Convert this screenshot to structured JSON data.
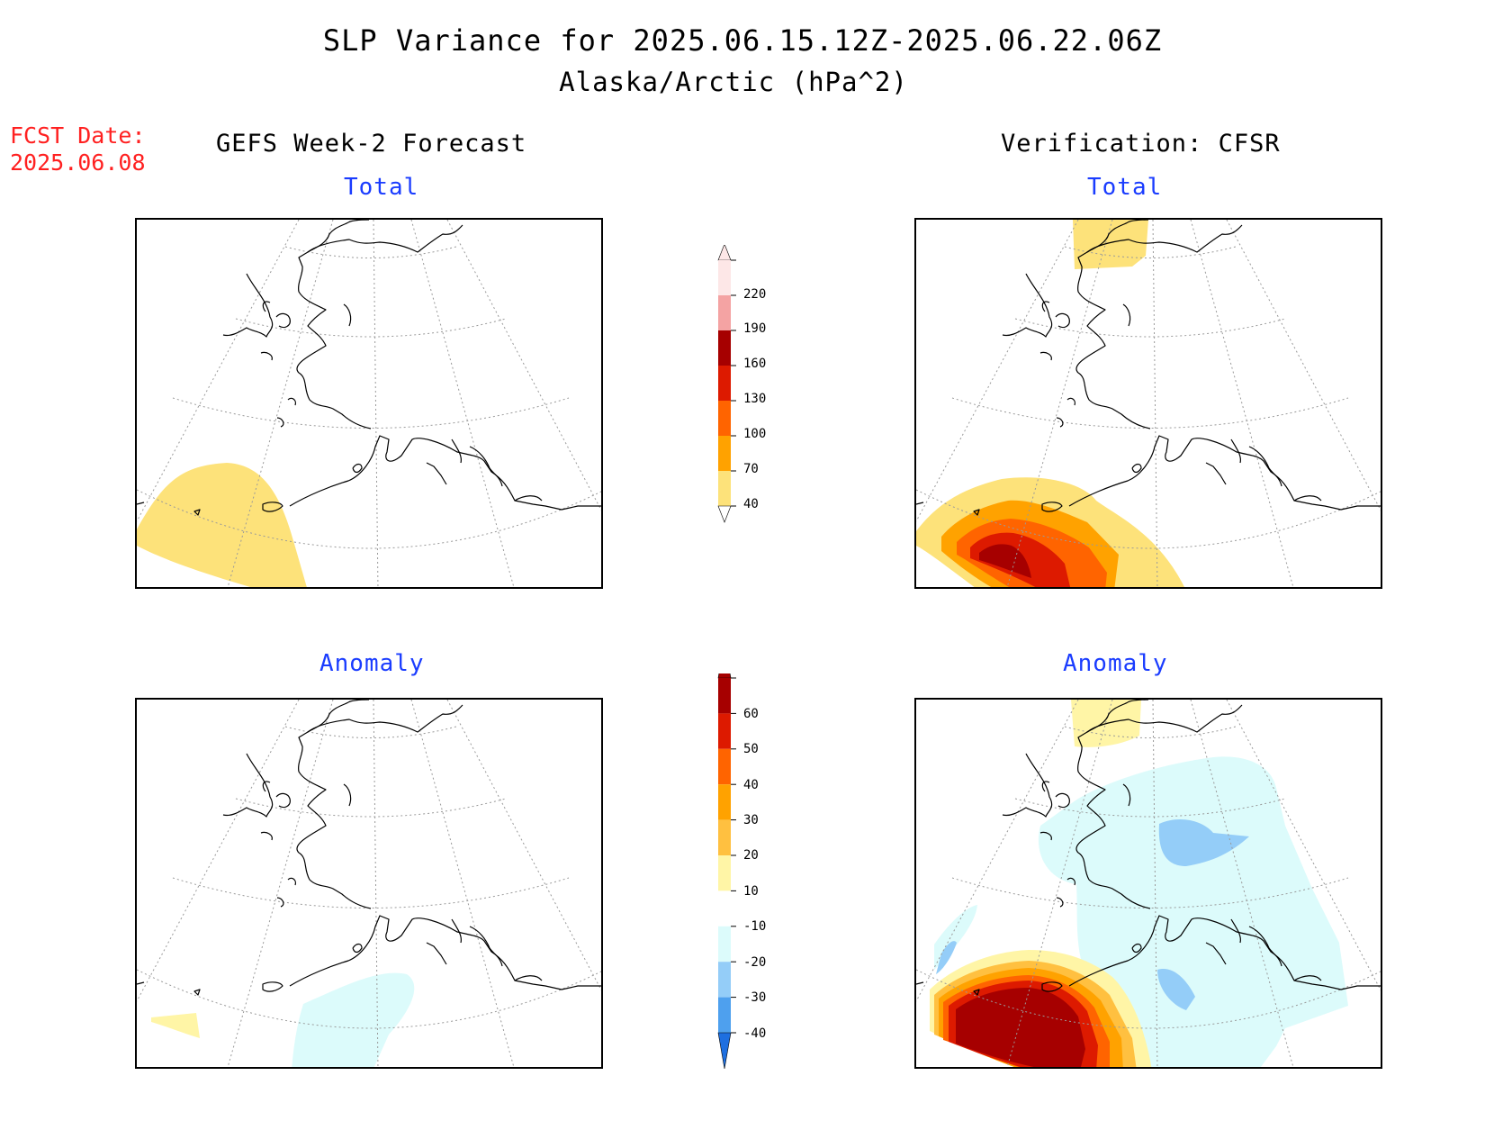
{
  "title": {
    "line1": "SLP Variance for 2025.06.15.12Z-2025.06.22.06Z",
    "line2": "Alaska/Arctic (hPa^2)"
  },
  "fcst": {
    "label": "FCST Date:",
    "date": "2025.06.08"
  },
  "columns": {
    "left": "GEFS Week-2 Forecast",
    "right": "Verification: CFSR"
  },
  "panels": {
    "total_label": "Total",
    "anomaly_label": "Anomaly"
  },
  "colorbar_total": {
    "ticks": [
      "220",
      "190",
      "160",
      "130",
      "100",
      "70",
      "40"
    ],
    "colors": [
      "#fde7e7",
      "#f4a3a3",
      "#a60000",
      "#dd1a00",
      "#ff6400",
      "#ffa200",
      "#fde27a"
    ]
  },
  "colorbar_anomaly": {
    "ticks": [
      "60",
      "50",
      "40",
      "30",
      "20",
      "10",
      "-10",
      "-20",
      "-30",
      "-40"
    ],
    "colors": [
      "#a60000",
      "#dd1a00",
      "#ff6400",
      "#ffa200",
      "#ffc040",
      "#fff5a6",
      "#ffffff",
      "#dcfbfb",
      "#94cdf8",
      "#4ea0ee",
      "#1e6fe0"
    ]
  }
}
